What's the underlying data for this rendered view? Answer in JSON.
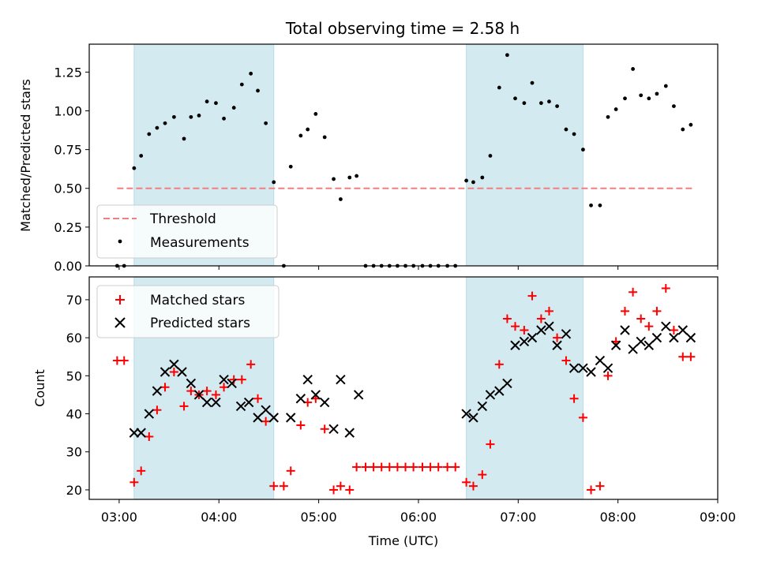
{
  "chart_data": {
    "type": "scatter",
    "title": "Total observing time = 2.58 h",
    "xlabel": "Time (UTC)",
    "x_tick_labels": [
      "03:00",
      "04:00",
      "05:00",
      "06:00",
      "07:00",
      "08:00",
      "09:00"
    ],
    "x_ticks_hours": [
      3,
      4,
      5,
      6,
      7,
      8,
      9
    ],
    "xlim_hours": [
      2.7,
      9.0
    ],
    "shaded_intervals_hours": [
      [
        3.15,
        4.55
      ],
      [
        6.48,
        7.65
      ]
    ],
    "shade_color": "#d3eaf1",
    "panels": [
      {
        "name": "ratio",
        "ylabel": "Matched/Predicted stars",
        "ylim": [
          0,
          1.43
        ],
        "y_ticks": [
          0.0,
          0.25,
          0.5,
          0.75,
          1.0,
          1.25
        ],
        "y_tick_labels": [
          "0.00",
          "0.25",
          "0.50",
          "0.75",
          "1.00",
          "1.25"
        ],
        "legend_position": "lower-left",
        "threshold": {
          "name": "Threshold",
          "value": 0.5,
          "x_range_hours": [
            2.98,
            8.75
          ],
          "color": "#f08080"
        },
        "measurements": {
          "name": "Measurements",
          "color": "#000000",
          "x": [
            2.98,
            3.05,
            3.15,
            3.22,
            3.3,
            3.38,
            3.46,
            3.55,
            3.65,
            3.72,
            3.8,
            3.88,
            3.97,
            4.05,
            4.15,
            4.23,
            4.32,
            4.39,
            4.47,
            4.55,
            4.65,
            4.72,
            4.82,
            4.89,
            4.97,
            5.06,
            5.15,
            5.22,
            5.31,
            5.38,
            5.47,
            5.55,
            5.63,
            5.71,
            5.79,
            5.87,
            5.95,
            6.04,
            6.12,
            6.2,
            6.29,
            6.37,
            6.48,
            6.55,
            6.64,
            6.72,
            6.81,
            6.89,
            6.97,
            7.06,
            7.14,
            7.23,
            7.31,
            7.39,
            7.48,
            7.56,
            7.65,
            7.73,
            7.82,
            7.9,
            7.98,
            8.07,
            8.15,
            8.23,
            8.31,
            8.39,
            8.48,
            8.56,
            8.65,
            8.73
          ],
          "y": [
            0.0,
            0.0,
            0.63,
            0.71,
            0.85,
            0.89,
            0.92,
            0.96,
            0.82,
            0.96,
            0.97,
            1.06,
            1.05,
            0.95,
            1.02,
            1.17,
            1.24,
            1.13,
            0.92,
            0.54,
            0.0,
            0.64,
            0.84,
            0.88,
            0.98,
            0.83,
            0.56,
            0.43,
            0.57,
            0.58,
            0.0,
            0.0,
            0.0,
            0.0,
            0.0,
            0.0,
            0.0,
            0.0,
            0.0,
            0.0,
            0.0,
            0.0,
            0.55,
            0.54,
            0.57,
            0.71,
            1.15,
            1.36,
            1.08,
            1.05,
            1.18,
            1.05,
            1.06,
            1.03,
            0.88,
            0.85,
            0.75,
            0.39,
            0.39,
            0.96,
            1.01,
            1.08,
            1.27,
            1.1,
            1.08,
            1.11,
            1.16,
            1.03,
            0.88,
            0.91
          ]
        }
      },
      {
        "name": "count",
        "ylabel": "Count",
        "ylim": [
          17.5,
          76
        ],
        "y_ticks": [
          20,
          30,
          40,
          50,
          60,
          70
        ],
        "y_tick_labels": [
          "20",
          "30",
          "40",
          "50",
          "60",
          "70"
        ],
        "legend_position": "upper-left",
        "matched": {
          "name": "Matched stars",
          "color": "#ff0000",
          "x": [
            2.98,
            3.05,
            3.15,
            3.22,
            3.3,
            3.38,
            3.46,
            3.55,
            3.65,
            3.72,
            3.8,
            3.88,
            3.97,
            4.05,
            4.15,
            4.23,
            4.32,
            4.39,
            4.47,
            4.55,
            4.65,
            4.72,
            4.82,
            4.89,
            4.97,
            5.06,
            5.15,
            5.22,
            5.31,
            5.38,
            5.47,
            5.55,
            5.63,
            5.71,
            5.79,
            5.87,
            5.95,
            6.04,
            6.12,
            6.2,
            6.29,
            6.37,
            6.48,
            6.55,
            6.64,
            6.72,
            6.81,
            6.89,
            6.97,
            7.06,
            7.14,
            7.23,
            7.31,
            7.39,
            7.48,
            7.56,
            7.65,
            7.73,
            7.82,
            7.9,
            7.98,
            8.07,
            8.15,
            8.23,
            8.31,
            8.39,
            8.48,
            8.56,
            8.65,
            8.73
          ],
          "y": [
            54,
            54,
            22,
            25,
            34,
            41,
            47,
            51,
            42,
            46,
            45,
            46,
            45,
            47,
            49,
            49,
            53,
            44,
            38,
            21,
            21,
            25,
            37,
            43,
            44,
            36,
            20,
            21,
            20,
            26,
            26,
            26,
            26,
            26,
            26,
            26,
            26,
            26,
            26,
            26,
            26,
            26,
            22,
            21,
            24,
            32,
            53,
            65,
            63,
            62,
            71,
            65,
            67,
            60,
            54,
            44,
            39,
            20,
            21,
            50,
            59,
            67,
            72,
            65,
            63,
            67,
            73,
            62,
            55,
            55
          ]
        },
        "predicted": {
          "name": "Predicted stars",
          "color": "#000000",
          "x": [
            3.15,
            3.22,
            3.3,
            3.38,
            3.46,
            3.55,
            3.63,
            3.72,
            3.8,
            3.88,
            3.97,
            4.05,
            4.13,
            4.22,
            4.3,
            4.39,
            4.47,
            4.55,
            4.72,
            4.82,
            4.89,
            4.97,
            5.06,
            5.15,
            5.22,
            5.31,
            5.4,
            6.48,
            6.55,
            6.64,
            6.72,
            6.81,
            6.89,
            6.97,
            7.06,
            7.14,
            7.23,
            7.31,
            7.39,
            7.48,
            7.56,
            7.65,
            7.73,
            7.82,
            7.9,
            7.98,
            8.07,
            8.15,
            8.23,
            8.31,
            8.39,
            8.48,
            8.56,
            8.65,
            8.73
          ],
          "y": [
            35,
            35,
            40,
            46,
            51,
            53,
            51,
            48,
            45,
            43,
            43,
            49,
            48,
            42,
            43,
            39,
            41,
            39,
            39,
            44,
            49,
            45,
            43,
            36,
            49,
            35,
            45,
            40,
            39,
            42,
            45,
            46,
            48,
            58,
            59,
            60,
            62,
            63,
            58,
            61,
            52,
            52,
            51,
            54,
            52,
            58,
            62,
            57,
            59,
            58,
            60,
            63,
            60,
            62,
            60
          ]
        }
      }
    ]
  }
}
